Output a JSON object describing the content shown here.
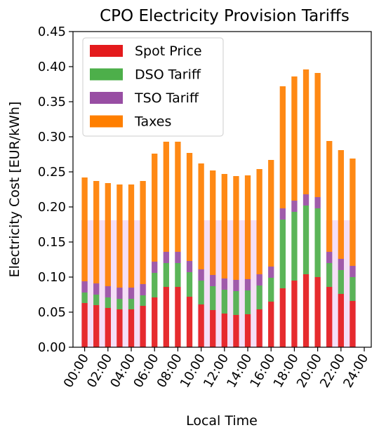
{
  "chart_data": {
    "type": "bar",
    "stacked": true,
    "title": "CPO Electricity Provision Tariffs",
    "xlabel": "Local Time",
    "ylabel": "Electricity Cost [EUR/kWh]",
    "ylim": [
      0,
      0.45
    ],
    "yticks": [
      "0.00",
      "0.05",
      "0.10",
      "0.15",
      "0.20",
      "0.25",
      "0.30",
      "0.35",
      "0.40",
      "0.45"
    ],
    "xlim": [
      0,
      24
    ],
    "xticks": [
      "00:00",
      "02:00",
      "04:00",
      "06:00",
      "08:00",
      "10:00",
      "12:00",
      "14:00",
      "16:00",
      "18:00",
      "20:00",
      "22:00",
      "24:00"
    ],
    "x": [
      0,
      1,
      2,
      3,
      4,
      5,
      6,
      7,
      8,
      9,
      10,
      11,
      12,
      13,
      14,
      15,
      16,
      17,
      18,
      19,
      20,
      21,
      22,
      23
    ],
    "grid": false,
    "legend_position": "top-left",
    "shaded_band": {
      "y_range": [
        0,
        0.181
      ],
      "x_ranges": [
        [
          0,
          6
        ],
        [
          10,
          16
        ],
        [
          21,
          24
        ]
      ],
      "color": "#f3d9f6"
    },
    "series": [
      {
        "name": "Spot Price",
        "color": "#e41a1c",
        "values": [
          0.063,
          0.06,
          0.056,
          0.054,
          0.054,
          0.059,
          0.071,
          0.086,
          0.086,
          0.072,
          0.061,
          0.053,
          0.048,
          0.046,
          0.047,
          0.054,
          0.065,
          0.084,
          0.095,
          0.104,
          0.1,
          0.086,
          0.076,
          0.066
        ]
      },
      {
        "name": "DSO Tariff",
        "color": "#4daf4a",
        "values": [
          0.015,
          0.015,
          0.015,
          0.015,
          0.015,
          0.015,
          0.035,
          0.034,
          0.034,
          0.035,
          0.034,
          0.034,
          0.034,
          0.034,
          0.034,
          0.034,
          0.034,
          0.098,
          0.098,
          0.098,
          0.098,
          0.034,
          0.034,
          0.034
        ]
      },
      {
        "name": "TSO Tariff",
        "color": "#984ea3",
        "values": [
          0.016,
          0.016,
          0.016,
          0.016,
          0.016,
          0.016,
          0.016,
          0.016,
          0.016,
          0.016,
          0.016,
          0.016,
          0.016,
          0.016,
          0.016,
          0.016,
          0.016,
          0.016,
          0.016,
          0.016,
          0.016,
          0.016,
          0.016,
          0.016
        ]
      },
      {
        "name": "Taxes",
        "color": "#ff7f00",
        "values": [
          0.148,
          0.146,
          0.147,
          0.147,
          0.147,
          0.147,
          0.154,
          0.157,
          0.157,
          0.154,
          0.151,
          0.149,
          0.149,
          0.148,
          0.148,
          0.15,
          0.152,
          0.174,
          0.177,
          0.178,
          0.177,
          0.158,
          0.155,
          0.153
        ]
      }
    ]
  }
}
